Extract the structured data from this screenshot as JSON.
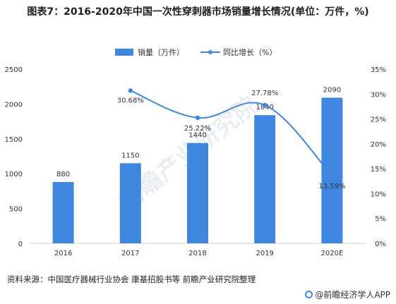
{
  "title": "图表7：2016-2020年中国一次性穿刺器市场销量增长情况(单位：万件，%)",
  "legend": {
    "bar_label": "销量（万件）",
    "line_label": "同比增长（%）"
  },
  "source": "资料来源：中国医疗器械行业协会 康基招股书等 前瞻产业研究院整理",
  "credit": "@前瞻经济学人APP",
  "colors": {
    "bar": "#3e86e0",
    "line": "#3e86e0",
    "axis": "#d0d0d0",
    "text": "#333333"
  },
  "chart_data": {
    "type": "bar",
    "categories": [
      "2016",
      "2017",
      "2018",
      "2019",
      "2020E"
    ],
    "series": [
      {
        "name": "销量（万件）",
        "type": "bar",
        "axis": "left",
        "values": [
          880,
          1150,
          1440,
          1840,
          2090
        ],
        "labels": [
          "880",
          "1150",
          "1440",
          "1840",
          "2090"
        ]
      },
      {
        "name": "同比增长（%）",
        "type": "line",
        "axis": "right",
        "values": [
          null,
          30.68,
          25.22,
          27.78,
          13.59
        ],
        "labels": [
          "",
          "30.68%",
          "25.22%",
          "27.78%",
          "13.59%"
        ]
      }
    ],
    "y_left": {
      "min": 0,
      "max": 2500,
      "ticks": [
        "0",
        "500",
        "1000",
        "1500",
        "2000",
        "2500"
      ]
    },
    "y_right": {
      "min": 0,
      "max": 35,
      "ticks": [
        "0%",
        "5%",
        "10%",
        "15%",
        "20%",
        "25%",
        "30%",
        "35%"
      ]
    },
    "grid": false,
    "legend_position": "top"
  }
}
